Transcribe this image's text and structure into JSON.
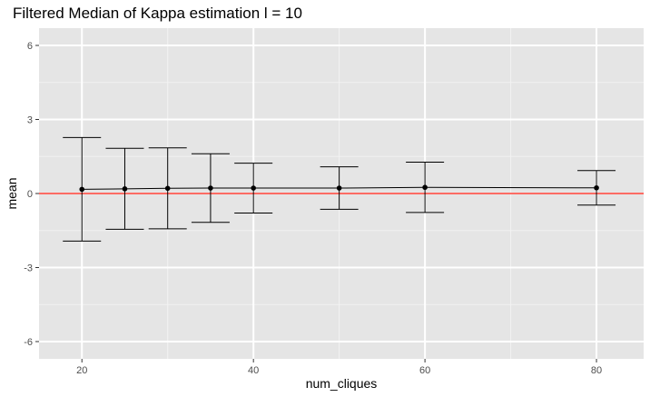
{
  "chart_data": {
    "type": "line",
    "title": "Filtered Median of Kappa estimation l = 10",
    "xlabel": "num_cliques",
    "ylabel": "mean",
    "xlim": [
      15,
      85.5
    ],
    "ylim": [
      -6.7,
      6.7
    ],
    "x_ticks": [
      20,
      40,
      60,
      80
    ],
    "y_ticks": [
      -6,
      -3,
      0,
      3,
      6
    ],
    "x_tick_labels": [
      "20",
      "40",
      "60",
      "80"
    ],
    "y_tick_labels": [
      "-6",
      "-3",
      "0",
      "3",
      "6"
    ],
    "x_minor_ticks": [
      30,
      50,
      70
    ],
    "y_minor_ticks": [
      -4.5,
      -1.5,
      1.5,
      4.5
    ],
    "grid": true,
    "reference_line": {
      "y": 0,
      "color": "#ff3b30"
    },
    "series": [
      {
        "x": [
          20,
          25,
          30,
          35,
          40,
          50,
          60,
          80
        ],
        "mean": [
          0.17,
          0.19,
          0.21,
          0.22,
          0.22,
          0.22,
          0.25,
          0.23
        ],
        "lower": [
          -1.93,
          -1.45,
          -1.43,
          -1.17,
          -0.79,
          -0.64,
          -0.77,
          -0.47
        ],
        "upper": [
          2.27,
          1.83,
          1.85,
          1.61,
          1.23,
          1.08,
          1.27,
          0.93
        ],
        "color": "#000000"
      }
    ],
    "colors": {
      "panel": "#e5e5e5",
      "grid_major": "#ffffff",
      "grid_minor": "#f2f2f2"
    }
  }
}
